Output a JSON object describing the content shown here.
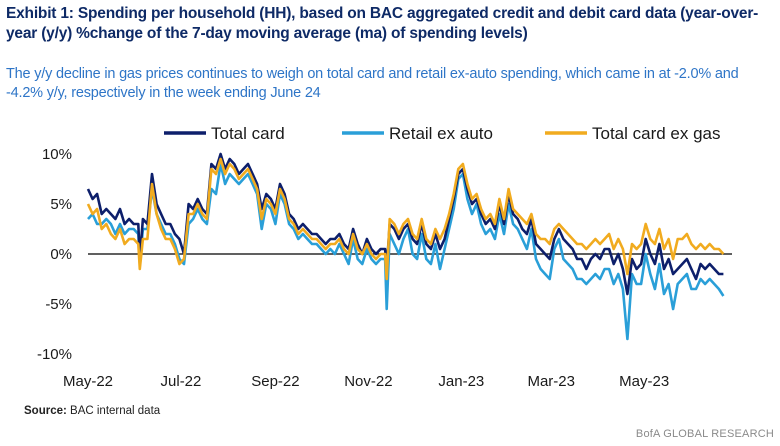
{
  "header": {
    "title": "Exhibit 1: Spending per household (HH), based on BAC aggregated credit and debit card data (year-over-year (y/y)  %change of the 7-day moving average (ma)  of spending levels)",
    "subtitle": "The y/y decline in gas prices continues to weigh on total card and retail ex-auto spending, which came in at -2.0% and -4.2% y/y, respectively in the week ending June 24"
  },
  "footer": {
    "source_label": "Source:",
    "source_text": "BAC internal data",
    "brand": "BofA GLOBAL RESEARCH"
  },
  "colors": {
    "total_card": "#0d1f6b",
    "retail_ex_auto": "#2a9fd8",
    "total_card_ex_gas": "#f1ab1f",
    "zero_line": "#000000"
  },
  "chart_data": {
    "type": "line",
    "title": "Spending per household (HH), y/y % change of 7-day moving average",
    "xlabel": "",
    "ylabel": "",
    "ylim": [
      -10,
      10
    ],
    "yticks": [
      10,
      5,
      0,
      -5,
      -10
    ],
    "ytick_labels": [
      "10%",
      "5%",
      "0%",
      "-5%",
      "-10%"
    ],
    "xlim": [
      0,
      420
    ],
    "xticks": [
      0,
      61,
      123,
      184,
      245,
      304,
      365
    ],
    "xtick_labels": [
      "May-22",
      "Jul-22",
      "Sep-22",
      "Nov-22",
      "Jan-23",
      "Mar-23",
      "May-23"
    ],
    "x_unit": "days since May 1, 2022",
    "legend_position": "top",
    "series": [
      {
        "name": "Total card",
        "color_key": "total_card",
        "x": [
          0,
          3,
          6,
          9,
          12,
          15,
          18,
          21,
          24,
          27,
          30,
          33,
          34,
          36,
          39,
          42,
          45,
          48,
          51,
          54,
          57,
          60,
          63,
          66,
          69,
          72,
          75,
          78,
          81,
          84,
          87,
          90,
          93,
          96,
          99,
          102,
          105,
          108,
          111,
          114,
          117,
          120,
          123,
          126,
          129,
          132,
          135,
          138,
          141,
          144,
          147,
          150,
          153,
          156,
          159,
          162,
          165,
          168,
          171,
          174,
          177,
          180,
          183,
          186,
          189,
          192,
          195,
          196,
          198,
          201,
          204,
          207,
          210,
          213,
          216,
          219,
          222,
          225,
          228,
          231,
          234,
          237,
          240,
          243,
          246,
          249,
          252,
          255,
          258,
          261,
          264,
          267,
          270,
          273,
          276,
          279,
          282,
          285,
          288,
          291,
          294,
          297,
          300,
          303,
          306,
          309,
          312,
          315,
          318,
          321,
          324,
          327,
          330,
          333,
          336,
          339,
          342,
          345,
          348,
          351,
          354,
          357,
          360,
          363,
          366,
          369,
          372,
          375,
          378,
          381,
          384,
          387,
          390,
          393,
          396,
          399,
          402,
          405,
          408,
          411,
          414,
          417
        ],
        "y": [
          6.5,
          5.5,
          6.0,
          4.0,
          4.5,
          4.0,
          3.5,
          4.5,
          3.0,
          3.5,
          3.0,
          3.0,
          -0.5,
          3.5,
          3.0,
          8.0,
          5.0,
          4.0,
          3.0,
          3.0,
          2.0,
          1.5,
          0.0,
          5.0,
          4.5,
          5.5,
          4.5,
          4.0,
          9.0,
          8.5,
          10.0,
          8.5,
          9.5,
          9.0,
          8.0,
          8.5,
          9.0,
          8.0,
          7.0,
          4.5,
          6.0,
          5.5,
          4.5,
          7.0,
          6.0,
          4.0,
          3.5,
          2.5,
          3.0,
          2.5,
          2.0,
          2.0,
          1.5,
          1.0,
          1.5,
          1.5,
          2.0,
          1.0,
          0.5,
          2.5,
          1.0,
          0.0,
          1.5,
          0.5,
          0.0,
          0.5,
          0.5,
          -1.5,
          3.0,
          2.5,
          1.5,
          2.5,
          3.0,
          1.5,
          1.0,
          3.0,
          1.0,
          0.5,
          2.0,
          0.5,
          1.5,
          3.5,
          5.5,
          8.0,
          8.5,
          6.5,
          5.0,
          5.5,
          4.0,
          3.0,
          3.5,
          2.5,
          5.0,
          3.0,
          6.0,
          4.0,
          3.5,
          2.5,
          2.0,
          3.5,
          1.0,
          0.5,
          0.0,
          -0.5,
          1.5,
          2.5,
          1.5,
          1.0,
          0.5,
          -0.5,
          -0.5,
          -1.5,
          -0.5,
          0.0,
          -0.5,
          0.5,
          0.5,
          -1.0,
          0.0,
          -1.5,
          -4.0,
          -0.5,
          -1.5,
          -1.0,
          1.5,
          0.0,
          -1.0,
          1.0,
          -1.5,
          -0.5,
          -2.0,
          -1.5,
          -1.0,
          -0.5,
          -1.5,
          -2.5,
          -1.0,
          -1.5,
          -1.0,
          -1.5,
          -2.0,
          -2.0
        ]
      },
      {
        "name": "Retail ex auto",
        "color_key": "retail_ex_auto",
        "x": [
          0,
          3,
          6,
          9,
          12,
          15,
          18,
          21,
          24,
          27,
          30,
          33,
          34,
          36,
          39,
          42,
          45,
          48,
          51,
          54,
          57,
          60,
          63,
          66,
          69,
          72,
          75,
          78,
          81,
          84,
          87,
          90,
          93,
          96,
          99,
          102,
          105,
          108,
          111,
          114,
          117,
          120,
          123,
          126,
          129,
          132,
          135,
          138,
          141,
          144,
          147,
          150,
          153,
          156,
          159,
          162,
          165,
          168,
          171,
          174,
          177,
          180,
          183,
          186,
          189,
          192,
          195,
          196,
          198,
          201,
          204,
          207,
          210,
          213,
          216,
          219,
          222,
          225,
          228,
          231,
          234,
          237,
          240,
          243,
          246,
          249,
          252,
          255,
          258,
          261,
          264,
          267,
          270,
          273,
          276,
          279,
          282,
          285,
          288,
          291,
          294,
          297,
          300,
          303,
          306,
          309,
          312,
          315,
          318,
          321,
          324,
          327,
          330,
          333,
          336,
          339,
          342,
          345,
          348,
          351,
          354,
          357,
          360,
          363,
          366,
          369,
          372,
          375,
          378,
          381,
          384,
          387,
          390,
          393,
          396,
          399,
          402,
          405,
          408,
          411,
          414,
          417
        ],
        "y": [
          3.5,
          4.0,
          3.0,
          3.0,
          3.5,
          3.0,
          2.0,
          3.0,
          2.0,
          2.5,
          2.5,
          2.0,
          -1.0,
          2.5,
          2.5,
          6.5,
          4.0,
          3.0,
          2.0,
          2.0,
          1.0,
          -0.5,
          -1.0,
          3.0,
          3.5,
          4.5,
          3.5,
          3.0,
          6.5,
          6.0,
          9.0,
          7.0,
          8.0,
          7.5,
          7.0,
          7.5,
          8.0,
          7.0,
          6.0,
          2.5,
          5.0,
          4.5,
          3.0,
          6.0,
          5.0,
          3.0,
          2.5,
          1.5,
          2.0,
          1.5,
          1.0,
          1.0,
          0.5,
          0.0,
          0.5,
          0.0,
          1.0,
          0.0,
          -1.0,
          1.5,
          -0.5,
          -1.0,
          0.5,
          -0.5,
          -1.0,
          -0.5,
          -0.5,
          -5.5,
          2.0,
          1.0,
          0.0,
          1.5,
          2.5,
          0.0,
          -0.5,
          2.0,
          -0.5,
          -1.0,
          1.0,
          -1.5,
          0.5,
          2.5,
          4.5,
          7.5,
          8.0,
          5.5,
          4.0,
          5.0,
          3.0,
          2.0,
          2.5,
          1.5,
          4.0,
          2.0,
          5.0,
          3.0,
          2.5,
          1.5,
          0.5,
          2.5,
          -0.5,
          -1.5,
          -2.0,
          -2.5,
          0.5,
          1.5,
          -0.5,
          -1.0,
          -1.5,
          -2.5,
          -2.5,
          -3.0,
          -2.5,
          -2.0,
          -2.5,
          -1.5,
          -1.5,
          -3.0,
          -2.0,
          -3.5,
          -8.5,
          -2.0,
          -3.0,
          -3.0,
          0.0,
          -2.0,
          -3.5,
          -1.0,
          -4.0,
          -3.0,
          -5.5,
          -3.0,
          -2.5,
          -2.0,
          -3.5,
          -3.5,
          -2.5,
          -3.0,
          -2.5,
          -3.0,
          -3.5,
          -4.2
        ]
      },
      {
        "name": "Total card ex gas",
        "color_key": "total_card_ex_gas",
        "x": [
          0,
          3,
          6,
          9,
          12,
          15,
          18,
          21,
          24,
          27,
          30,
          33,
          34,
          36,
          39,
          42,
          45,
          48,
          51,
          54,
          57,
          60,
          63,
          66,
          69,
          72,
          75,
          78,
          81,
          84,
          87,
          90,
          93,
          96,
          99,
          102,
          105,
          108,
          111,
          114,
          117,
          120,
          123,
          126,
          129,
          132,
          135,
          138,
          141,
          144,
          147,
          150,
          153,
          156,
          159,
          162,
          165,
          168,
          171,
          174,
          177,
          180,
          183,
          186,
          189,
          192,
          195,
          196,
          198,
          201,
          204,
          207,
          210,
          213,
          216,
          219,
          222,
          225,
          228,
          231,
          234,
          237,
          240,
          243,
          246,
          249,
          252,
          255,
          258,
          261,
          264,
          267,
          270,
          273,
          276,
          279,
          282,
          285,
          288,
          291,
          294,
          297,
          300,
          303,
          306,
          309,
          312,
          315,
          318,
          321,
          324,
          327,
          330,
          333,
          336,
          339,
          342,
          345,
          348,
          351,
          354,
          357,
          360,
          363,
          366,
          369,
          372,
          375,
          378,
          381,
          384,
          387,
          390,
          393,
          396,
          399,
          402,
          405,
          408,
          411,
          414,
          417
        ],
        "y": [
          5.0,
          4.0,
          4.5,
          2.5,
          3.0,
          2.0,
          1.5,
          2.5,
          1.0,
          1.5,
          1.5,
          1.0,
          -1.5,
          1.5,
          1.5,
          7.0,
          4.0,
          2.5,
          1.5,
          1.5,
          0.5,
          -1.0,
          -0.5,
          4.0,
          4.0,
          5.0,
          4.0,
          3.5,
          8.5,
          8.0,
          9.5,
          8.0,
          9.0,
          8.5,
          7.5,
          8.0,
          8.5,
          7.5,
          6.5,
          3.5,
          5.5,
          5.0,
          4.0,
          6.5,
          5.5,
          3.5,
          3.0,
          2.0,
          2.5,
          2.0,
          1.5,
          1.5,
          1.0,
          0.5,
          1.0,
          1.0,
          1.5,
          0.5,
          0.0,
          2.0,
          0.5,
          0.0,
          1.0,
          0.0,
          -0.5,
          0.0,
          0.0,
          -2.5,
          3.5,
          3.0,
          2.0,
          3.0,
          3.5,
          2.0,
          1.5,
          3.5,
          1.5,
          1.0,
          2.5,
          1.5,
          2.5,
          4.0,
          6.0,
          8.5,
          9.0,
          7.0,
          5.5,
          6.0,
          4.5,
          3.5,
          4.0,
          3.0,
          5.5,
          3.5,
          6.5,
          4.5,
          4.0,
          3.5,
          3.0,
          4.0,
          2.0,
          1.5,
          1.5,
          1.0,
          2.5,
          3.0,
          2.5,
          2.0,
          1.5,
          1.0,
          1.0,
          0.5,
          1.0,
          1.5,
          1.0,
          1.5,
          2.0,
          0.5,
          1.5,
          0.5,
          -2.0,
          1.0,
          0.5,
          1.0,
          3.0,
          1.5,
          1.0,
          2.5,
          0.5,
          1.5,
          -0.5,
          1.5,
          1.5,
          2.0,
          1.0,
          0.5,
          1.0,
          0.5,
          1.0,
          0.5,
          0.5,
          0.0
        ]
      }
    ]
  }
}
